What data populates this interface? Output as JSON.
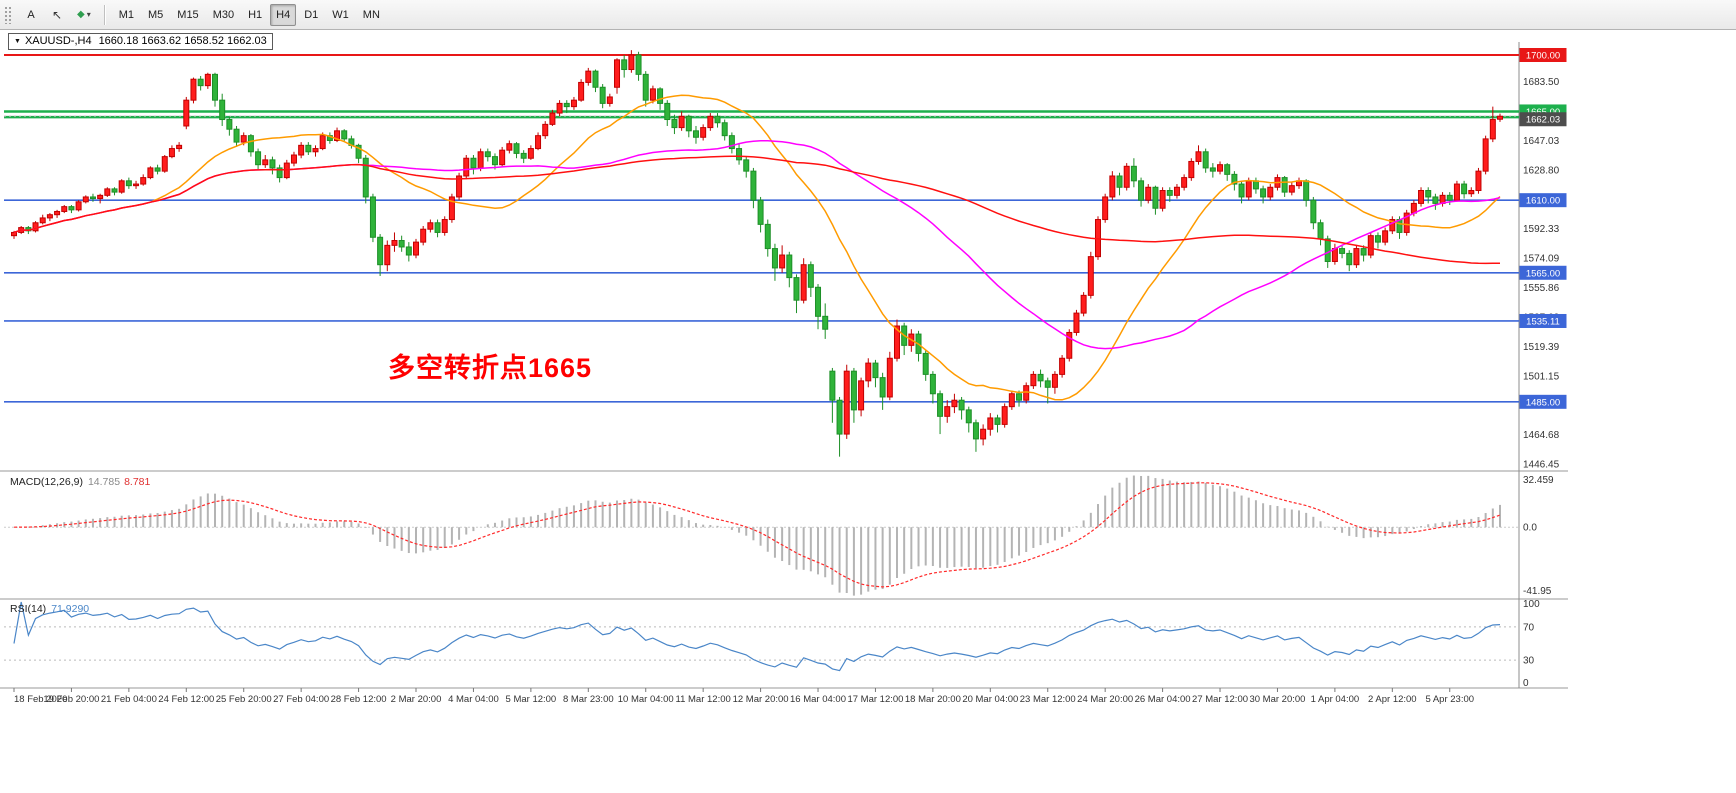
{
  "toolbar": {
    "text_tool": "A",
    "timeframes": [
      "M1",
      "M5",
      "M15",
      "M30",
      "H1",
      "H4",
      "D1",
      "W1",
      "MN"
    ],
    "active_timeframe": "H4"
  },
  "chart": {
    "title": "XAUUSD-,H4",
    "ohlc_text": "1660.18 1663.62 1658.52 1662.03",
    "annotation": {
      "text": "多空转折点1665",
      "color": "#ff0000"
    },
    "price_ticks": [
      "1683.50",
      "1665.27",
      "1647.03",
      "1628.80",
      "1610.56",
      "1592.33",
      "1574.09",
      "1555.86",
      "1537.62",
      "1519.39",
      "1501.15",
      "1482.92",
      "1464.68",
      "1446.45"
    ],
    "hlines": [
      {
        "price": 1700.0,
        "label": "1700.00",
        "color": "#e81717",
        "width": 2
      },
      {
        "price": 1665.0,
        "label": "1665.00",
        "color": "#1db04d",
        "width": 2.5
      },
      {
        "price": 1661.5,
        "label": "",
        "color": "#1db04d",
        "width": 2.5
      },
      {
        "price": 1610.0,
        "label": "1610.00",
        "color": "#3c66d8",
        "width": 1.6
      },
      {
        "price": 1565.0,
        "label": "1565.00",
        "color": "#3c66d8",
        "width": 1.6
      },
      {
        "price": 1535.11,
        "label": "1535.11",
        "color": "#3c66d8",
        "width": 1.6
      },
      {
        "price": 1485.0,
        "label": "1485.00",
        "color": "#3c66d8",
        "width": 1.6
      }
    ],
    "current_price": {
      "value": 1662.03,
      "label": "1662.03",
      "box_color": "#4d4d4d"
    },
    "date_labels": [
      "18 Feb 2020",
      "19 Feb 20:00",
      "21 Feb 04:00",
      "24 Feb 12:00",
      "25 Feb 20:00",
      "27 Feb 04:00",
      "28 Feb 12:00",
      "2 Mar 20:00",
      "4 Mar 04:00",
      "5 Mar 12:00",
      "8 Mar 23:00",
      "10 Mar 04:00",
      "11 Mar 12:00",
      "12 Mar 20:00",
      "16 Mar 04:00",
      "17 Mar 12:00",
      "18 Mar 20:00",
      "20 Mar 04:00",
      "23 Mar 12:00",
      "24 Mar 20:00",
      "26 Mar 04:00",
      "27 Mar 12:00",
      "30 Mar 20:00",
      "1 Apr 04:00",
      "2 Apr 12:00",
      "5 Apr 23:00"
    ]
  },
  "macd": {
    "name": "MACD(12,26,9)",
    "main_value": "14.785",
    "signal_value": "8.781",
    "scale_top": "32.459",
    "scale_zero": "0.0",
    "scale_bottom": "-41.95",
    "fast": 12,
    "slow": 26,
    "signal": 9
  },
  "rsi": {
    "name": "RSI(14)",
    "value": "71.9290",
    "period": 14,
    "scale": [
      "100",
      "70",
      "30",
      "0"
    ],
    "levels": [
      70,
      30
    ]
  },
  "chart_data": {
    "type": "candlestick",
    "symbol": "XAUUSD-",
    "timeframe": "H4",
    "title": "XAUUSD-,H4 1660.18 1663.62 1658.52 1662.03",
    "ylim": [
      1446.45,
      1700.0
    ],
    "last_bar": {
      "open": 1660.18,
      "high": 1663.62,
      "low": 1658.52,
      "close": 1662.03
    },
    "moving_averages": [
      {
        "type": "sma",
        "period": 20,
        "color": "#ff9b00"
      },
      {
        "type": "sma",
        "period": 50,
        "color": "#ff00ff"
      },
      {
        "type": "sma",
        "period": 110,
        "color": "#ff1010"
      }
    ],
    "colors": {
      "bull": "#ff1d1d",
      "bull_border": "#c20000",
      "bear": "#2fb33a",
      "bear_border": "#1d8f27",
      "macd_hist": "#b4b4b4",
      "macd_signal": "#ff2a2a",
      "rsi_line": "#4a86c8",
      "hline_blue": "#3c66d8",
      "hline_green": "#1db04d",
      "hline_red": "#e81717"
    },
    "candles": [
      [
        1588,
        1591,
        1586,
        1590
      ],
      [
        1590,
        1594,
        1589,
        1593
      ],
      [
        1593,
        1594,
        1589,
        1591
      ],
      [
        1591,
        1597,
        1590,
        1596
      ],
      [
        1596,
        1601,
        1595,
        1599
      ],
      [
        1599,
        1602,
        1597,
        1601
      ],
      [
        1601,
        1604,
        1599,
        1603
      ],
      [
        1603,
        1607,
        1602,
        1606
      ],
      [
        1606,
        1607,
        1602,
        1604
      ],
      [
        1604,
        1610,
        1603,
        1609
      ],
      [
        1609,
        1613,
        1608,
        1612
      ],
      [
        1612,
        1614,
        1609,
        1611
      ],
      [
        1611,
        1614,
        1608,
        1613
      ],
      [
        1613,
        1618,
        1612,
        1617
      ],
      [
        1617,
        1618,
        1613,
        1615
      ],
      [
        1615,
        1623,
        1614,
        1622
      ],
      [
        1622,
        1624,
        1617,
        1619
      ],
      [
        1619,
        1622,
        1617,
        1620
      ],
      [
        1620,
        1626,
        1619,
        1624
      ],
      [
        1624,
        1631,
        1623,
        1630
      ],
      [
        1630,
        1632,
        1626,
        1628
      ],
      [
        1628,
        1638,
        1627,
        1637
      ],
      [
        1637,
        1644,
        1636,
        1642
      ],
      [
        1642,
        1646,
        1640,
        1644
      ],
      [
        1656,
        1674,
        1654,
        1672
      ],
      [
        1672,
        1686,
        1670,
        1685
      ],
      [
        1685,
        1687,
        1678,
        1681
      ],
      [
        1681,
        1689,
        1679,
        1688
      ],
      [
        1688,
        1689,
        1668,
        1672
      ],
      [
        1672,
        1676,
        1656,
        1660
      ],
      [
        1660,
        1662,
        1650,
        1654
      ],
      [
        1654,
        1656,
        1643,
        1646
      ],
      [
        1646,
        1652,
        1644,
        1650
      ],
      [
        1650,
        1651,
        1637,
        1640
      ],
      [
        1640,
        1642,
        1629,
        1632
      ],
      [
        1632,
        1638,
        1630,
        1635
      ],
      [
        1635,
        1637,
        1626,
        1630
      ],
      [
        1630,
        1632,
        1621,
        1624
      ],
      [
        1624,
        1635,
        1623,
        1633
      ],
      [
        1633,
        1640,
        1631,
        1638
      ],
      [
        1638,
        1646,
        1636,
        1644
      ],
      [
        1644,
        1646,
        1638,
        1640
      ],
      [
        1640,
        1644,
        1637,
        1642
      ],
      [
        1642,
        1652,
        1641,
        1650
      ],
      [
        1650,
        1652,
        1645,
        1647
      ],
      [
        1647,
        1655,
        1646,
        1653
      ],
      [
        1653,
        1654,
        1646,
        1648
      ],
      [
        1648,
        1650,
        1642,
        1644
      ],
      [
        1644,
        1645,
        1633,
        1636
      ],
      [
        1636,
        1638,
        1608,
        1612
      ],
      [
        1612,
        1614,
        1584,
        1587
      ],
      [
        1587,
        1589,
        1563,
        1570
      ],
      [
        1570,
        1585,
        1566,
        1582
      ],
      [
        1582,
        1590,
        1578,
        1585
      ],
      [
        1585,
        1588,
        1578,
        1581
      ],
      [
        1581,
        1584,
        1572,
        1576
      ],
      [
        1576,
        1586,
        1574,
        1584
      ],
      [
        1584,
        1594,
        1582,
        1592
      ],
      [
        1592,
        1598,
        1590,
        1596
      ],
      [
        1596,
        1598,
        1587,
        1590
      ],
      [
        1590,
        1600,
        1588,
        1598
      ],
      [
        1598,
        1614,
        1596,
        1612
      ],
      [
        1612,
        1627,
        1610,
        1625
      ],
      [
        1625,
        1638,
        1623,
        1636
      ],
      [
        1636,
        1638,
        1626,
        1630
      ],
      [
        1630,
        1642,
        1628,
        1640
      ],
      [
        1640,
        1642,
        1634,
        1637
      ],
      [
        1637,
        1639,
        1629,
        1632
      ],
      [
        1632,
        1643,
        1631,
        1641
      ],
      [
        1641,
        1647,
        1639,
        1645
      ],
      [
        1645,
        1646,
        1636,
        1639
      ],
      [
        1639,
        1641,
        1633,
        1636
      ],
      [
        1636,
        1644,
        1635,
        1642
      ],
      [
        1642,
        1652,
        1641,
        1650
      ],
      [
        1650,
        1659,
        1648,
        1657
      ],
      [
        1657,
        1666,
        1656,
        1664
      ],
      [
        1664,
        1672,
        1662,
        1670
      ],
      [
        1670,
        1672,
        1664,
        1668
      ],
      [
        1668,
        1674,
        1666,
        1672
      ],
      [
        1672,
        1685,
        1671,
        1683
      ],
      [
        1683,
        1692,
        1681,
        1690
      ],
      [
        1690,
        1691,
        1677,
        1680
      ],
      [
        1680,
        1682,
        1667,
        1670
      ],
      [
        1670,
        1676,
        1668,
        1674
      ],
      [
        1680,
        1698,
        1676,
        1697
      ],
      [
        1697,
        1700,
        1686,
        1691
      ],
      [
        1691,
        1703,
        1689,
        1700
      ],
      [
        1700,
        1702,
        1684,
        1688
      ],
      [
        1688,
        1690,
        1668,
        1672
      ],
      [
        1672,
        1681,
        1670,
        1679
      ],
      [
        1679,
        1680,
        1666,
        1670
      ],
      [
        1670,
        1672,
        1656,
        1660
      ],
      [
        1660,
        1663,
        1651,
        1655
      ],
      [
        1655,
        1665,
        1653,
        1662
      ],
      [
        1662,
        1663,
        1649,
        1653
      ],
      [
        1653,
        1656,
        1645,
        1649
      ],
      [
        1649,
        1657,
        1647,
        1655
      ],
      [
        1655,
        1664,
        1653,
        1662
      ],
      [
        1662,
        1664,
        1655,
        1658
      ],
      [
        1658,
        1660,
        1647,
        1650
      ],
      [
        1650,
        1652,
        1639,
        1642
      ],
      [
        1642,
        1645,
        1632,
        1635
      ],
      [
        1635,
        1637,
        1624,
        1628
      ],
      [
        1628,
        1630,
        1605,
        1610
      ],
      [
        1610,
        1612,
        1590,
        1595
      ],
      [
        1595,
        1598,
        1575,
        1580
      ],
      [
        1580,
        1583,
        1560,
        1568
      ],
      [
        1568,
        1582,
        1565,
        1576
      ],
      [
        1576,
        1578,
        1556,
        1562
      ],
      [
        1562,
        1564,
        1540,
        1548
      ],
      [
        1548,
        1574,
        1546,
        1570
      ],
      [
        1570,
        1572,
        1550,
        1556
      ],
      [
        1556,
        1558,
        1530,
        1538
      ],
      [
        1538,
        1546,
        1524,
        1530
      ],
      [
        1504,
        1506,
        1472,
        1486
      ],
      [
        1486,
        1488,
        1451,
        1465
      ],
      [
        1465,
        1508,
        1462,
        1504
      ],
      [
        1504,
        1506,
        1472,
        1480
      ],
      [
        1480,
        1500,
        1476,
        1498
      ],
      [
        1498,
        1512,
        1494,
        1509
      ],
      [
        1509,
        1511,
        1494,
        1500
      ],
      [
        1500,
        1503,
        1480,
        1488
      ],
      [
        1488,
        1516,
        1486,
        1512
      ],
      [
        1512,
        1536,
        1510,
        1532
      ],
      [
        1532,
        1534,
        1514,
        1520
      ],
      [
        1520,
        1530,
        1516,
        1527
      ],
      [
        1527,
        1529,
        1510,
        1515
      ],
      [
        1515,
        1517,
        1498,
        1502
      ],
      [
        1502,
        1504,
        1484,
        1490
      ],
      [
        1490,
        1492,
        1465,
        1476
      ],
      [
        1476,
        1486,
        1472,
        1482
      ],
      [
        1482,
        1490,
        1478,
        1486
      ],
      [
        1486,
        1488,
        1474,
        1480
      ],
      [
        1480,
        1482,
        1466,
        1472
      ],
      [
        1472,
        1474,
        1454,
        1462
      ],
      [
        1462,
        1471,
        1458,
        1468
      ],
      [
        1468,
        1478,
        1464,
        1475
      ],
      [
        1475,
        1477,
        1466,
        1471
      ],
      [
        1471,
        1484,
        1469,
        1482
      ],
      [
        1482,
        1492,
        1480,
        1490
      ],
      [
        1490,
        1492,
        1482,
        1486
      ],
      [
        1486,
        1497,
        1484,
        1495
      ],
      [
        1495,
        1504,
        1493,
        1502
      ],
      [
        1502,
        1505,
        1494,
        1498
      ],
      [
        1498,
        1500,
        1484,
        1494
      ],
      [
        1494,
        1504,
        1490,
        1502
      ],
      [
        1502,
        1514,
        1500,
        1512
      ],
      [
        1512,
        1530,
        1510,
        1528
      ],
      [
        1528,
        1542,
        1526,
        1540
      ],
      [
        1540,
        1553,
        1538,
        1551
      ],
      [
        1551,
        1578,
        1549,
        1575
      ],
      [
        1575,
        1600,
        1573,
        1598
      ],
      [
        1598,
        1614,
        1596,
        1612
      ],
      [
        1612,
        1628,
        1610,
        1625
      ],
      [
        1625,
        1627,
        1613,
        1618
      ],
      [
        1618,
        1633,
        1616,
        1631
      ],
      [
        1631,
        1636,
        1618,
        1622
      ],
      [
        1622,
        1624,
        1606,
        1610
      ],
      [
        1610,
        1620,
        1608,
        1618
      ],
      [
        1618,
        1619,
        1601,
        1605
      ],
      [
        1605,
        1618,
        1603,
        1616
      ],
      [
        1616,
        1618,
        1609,
        1613
      ],
      [
        1613,
        1620,
        1611,
        1618
      ],
      [
        1618,
        1626,
        1616,
        1624
      ],
      [
        1624,
        1636,
        1622,
        1634
      ],
      [
        1634,
        1644,
        1632,
        1640
      ],
      [
        1640,
        1642,
        1627,
        1630
      ],
      [
        1630,
        1633,
        1624,
        1628
      ],
      [
        1628,
        1634,
        1626,
        1632
      ],
      [
        1632,
        1633,
        1622,
        1626
      ],
      [
        1626,
        1628,
        1616,
        1620
      ],
      [
        1620,
        1622,
        1608,
        1612
      ],
      [
        1612,
        1624,
        1610,
        1622
      ],
      [
        1622,
        1624,
        1614,
        1617
      ],
      [
        1617,
        1619,
        1608,
        1612
      ],
      [
        1612,
        1620,
        1610,
        1618
      ],
      [
        1618,
        1626,
        1616,
        1624
      ],
      [
        1624,
        1625,
        1612,
        1615
      ],
      [
        1615,
        1621,
        1613,
        1619
      ],
      [
        1619,
        1624,
        1617,
        1622
      ],
      [
        1622,
        1623,
        1606,
        1610
      ],
      [
        1610,
        1612,
        1592,
        1596
      ],
      [
        1596,
        1598,
        1582,
        1586
      ],
      [
        1586,
        1588,
        1568,
        1572
      ],
      [
        1572,
        1583,
        1570,
        1580
      ],
      [
        1580,
        1582,
        1574,
        1577
      ],
      [
        1577,
        1579,
        1566,
        1570
      ],
      [
        1570,
        1582,
        1568,
        1580
      ],
      [
        1580,
        1582,
        1572,
        1576
      ],
      [
        1576,
        1590,
        1574,
        1588
      ],
      [
        1588,
        1590,
        1580,
        1584
      ],
      [
        1584,
        1593,
        1582,
        1591
      ],
      [
        1591,
        1600,
        1589,
        1598
      ],
      [
        1598,
        1600,
        1586,
        1590
      ],
      [
        1590,
        1604,
        1588,
        1602
      ],
      [
        1602,
        1610,
        1600,
        1608
      ],
      [
        1608,
        1618,
        1606,
        1616
      ],
      [
        1616,
        1618,
        1608,
        1612
      ],
      [
        1612,
        1614,
        1604,
        1608
      ],
      [
        1608,
        1615,
        1606,
        1613
      ],
      [
        1613,
        1615,
        1607,
        1610
      ],
      [
        1610,
        1622,
        1609,
        1620
      ],
      [
        1620,
        1622,
        1611,
        1614
      ],
      [
        1614,
        1618,
        1612,
        1616
      ],
      [
        1616,
        1630,
        1614,
        1628
      ],
      [
        1628,
        1650,
        1626,
        1648
      ],
      [
        1648,
        1668,
        1646,
        1660
      ],
      [
        1660.18,
        1663.62,
        1658.52,
        1662.03
      ]
    ]
  }
}
